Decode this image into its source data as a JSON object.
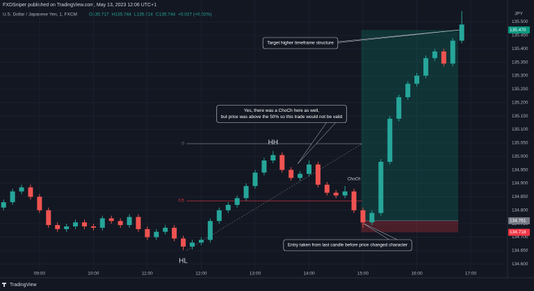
{
  "chart_data": {
    "type": "candlestick",
    "publisher": "FXDSniper published on TradingView.com, May 13, 2023 12:06 UTC+1",
    "symbol": "U.S. Dollar / Japanese Yen, 1, FXCM",
    "ohlc": [
      "O135.717",
      "H135.744",
      "L135.714",
      "C135.744",
      "+0.027 (+0.02%)"
    ],
    "currency": "JPY",
    "brand": "TradingView",
    "up_color": "#26a69a",
    "down_color": "#ef5350",
    "xlim": [
      "08:16",
      "17:41"
    ],
    "xticks": [
      "09:00",
      "10:00",
      "11:00",
      "12:00",
      "13:00",
      "14:00",
      "15:00",
      "16:00",
      "17:00"
    ],
    "ylim": [
      134.58,
      135.545
    ],
    "yticks": [
      {
        "value": 134.6,
        "label": "134.600"
      },
      {
        "value": 134.65,
        "label": "134.650"
      },
      {
        "value": 134.7,
        "label": "134.700"
      },
      {
        "value": 134.75,
        "label": "134.750"
      },
      {
        "value": 134.8,
        "label": "134.800"
      },
      {
        "value": 134.85,
        "label": "134.850"
      },
      {
        "value": 134.9,
        "label": "134.900"
      },
      {
        "value": 134.95,
        "label": "134.950"
      },
      {
        "value": 135.0,
        "label": "135.000"
      },
      {
        "value": 135.05,
        "label": "135.050"
      },
      {
        "value": 135.1,
        "label": "135.100"
      },
      {
        "value": 135.15,
        "label": "135.150"
      },
      {
        "value": 135.2,
        "label": "135.200"
      },
      {
        "value": 135.25,
        "label": "135.250"
      },
      {
        "value": 135.3,
        "label": "135.300"
      },
      {
        "value": 135.35,
        "label": "135.350"
      },
      {
        "value": 135.4,
        "label": "135.400"
      },
      {
        "value": 135.45,
        "label": "135.450"
      },
      {
        "value": 135.5,
        "label": "135.500"
      }
    ],
    "grid": true,
    "candles": {
      "x": [
        "08:20",
        "08:30",
        "08:40",
        "08:50",
        "09:00",
        "09:10",
        "09:20",
        "09:30",
        "09:40",
        "09:50",
        "10:00",
        "10:10",
        "10:20",
        "10:30",
        "10:40",
        "10:50",
        "11:00",
        "11:10",
        "11:20",
        "11:30",
        "11:40",
        "11:50",
        "12:00",
        "12:10",
        "12:20",
        "12:30",
        "12:40",
        "12:50",
        "13:00",
        "13:10",
        "13:20",
        "13:30",
        "13:40",
        "13:50",
        "14:00",
        "14:10",
        "14:20",
        "14:30",
        "14:40",
        "14:50",
        "15:00",
        "15:10",
        "15:20",
        "15:30",
        "15:40",
        "15:50",
        "16:00",
        "16:10",
        "16:20",
        "16:30",
        "16:40",
        "16:50"
      ],
      "open": [
        134.81,
        134.83,
        134.87,
        134.885,
        134.85,
        134.8,
        134.745,
        134.73,
        134.74,
        134.755,
        134.74,
        134.735,
        134.77,
        134.76,
        134.745,
        134.775,
        134.73,
        134.7,
        134.72,
        134.735,
        134.695,
        134.665,
        134.68,
        134.69,
        134.76,
        134.8,
        134.82,
        134.845,
        134.89,
        134.94,
        134.985,
        135.005,
        134.95,
        134.92,
        134.935,
        134.97,
        134.895,
        134.865,
        134.855,
        134.87,
        134.8,
        134.755,
        134.79,
        134.98,
        135.14,
        135.22,
        135.27,
        135.3,
        135.365,
        135.39,
        135.345,
        135.43
      ],
      "high": [
        134.84,
        134.88,
        134.895,
        134.895,
        134.86,
        134.81,
        134.755,
        134.75,
        134.765,
        134.765,
        134.75,
        134.78,
        134.78,
        134.77,
        134.785,
        134.785,
        134.74,
        134.73,
        134.745,
        134.745,
        134.705,
        134.69,
        134.7,
        134.77,
        134.81,
        134.83,
        134.855,
        134.9,
        134.95,
        134.995,
        135.02,
        135.015,
        134.96,
        134.945,
        134.985,
        134.98,
        134.905,
        134.875,
        134.89,
        134.88,
        134.81,
        134.8,
        134.99,
        135.15,
        135.23,
        135.28,
        135.31,
        135.375,
        135.4,
        135.4,
        135.44,
        135.54
      ],
      "low": [
        134.8,
        134.82,
        134.86,
        134.84,
        134.79,
        134.735,
        134.72,
        134.72,
        134.73,
        134.73,
        134.725,
        134.725,
        134.75,
        134.735,
        134.735,
        134.72,
        134.69,
        134.69,
        134.71,
        134.685,
        134.652,
        134.655,
        134.67,
        134.68,
        134.75,
        134.79,
        134.81,
        134.835,
        134.88,
        134.93,
        134.975,
        134.94,
        134.91,
        134.91,
        134.925,
        134.885,
        134.855,
        134.845,
        134.845,
        134.79,
        134.735,
        134.745,
        134.78,
        134.97,
        135.13,
        135.21,
        135.26,
        135.29,
        135.355,
        135.335,
        135.335,
        135.42
      ],
      "close": [
        134.83,
        134.87,
        134.885,
        134.85,
        134.8,
        134.745,
        134.73,
        134.74,
        134.755,
        134.74,
        134.735,
        134.77,
        134.76,
        134.745,
        134.775,
        134.73,
        134.7,
        134.72,
        134.735,
        134.695,
        134.665,
        134.68,
        134.69,
        134.76,
        134.8,
        134.82,
        134.845,
        134.89,
        134.94,
        134.985,
        135.005,
        134.95,
        134.92,
        134.935,
        134.97,
        134.895,
        134.865,
        134.855,
        134.87,
        134.8,
        134.755,
        134.79,
        134.98,
        135.14,
        135.22,
        135.27,
        135.3,
        135.365,
        135.39,
        135.345,
        135.43,
        135.49
      ]
    },
    "price_labels": [
      {
        "value": 135.47,
        "label": "135.470",
        "color": "#089981"
      },
      {
        "value": 134.761,
        "label": "134.761",
        "color": "#787b86"
      },
      {
        "value": 134.718,
        "label": "134.718",
        "color": "#f23645"
      }
    ],
    "position": {
      "start": "14:58",
      "end": "16:46"
    },
    "fib": {
      "start": "11:44",
      "end": "14:59",
      "levels": [
        {
          "value": 135.047,
          "label": "0",
          "color": "#787b86"
        },
        {
          "value": 134.835,
          "label": "0.5",
          "color": "#f23645"
        }
      ]
    },
    "markers": [
      {
        "text": "HH",
        "at": "13:20",
        "side": "high"
      },
      {
        "text": "HL",
        "at": "11:40",
        "side": "low"
      },
      {
        "text": "ChoCh",
        "at": "14:50",
        "side": "high"
      }
    ],
    "callouts": [
      {
        "lines": [
          "Target higher timeframe structure"
        ]
      },
      {
        "lines": [
          "Yes, there was a ChoCh here as well,",
          "but price was above the 50% so this trade would not be valid"
        ]
      },
      {
        "lines": [
          "Entry taken from last candle before price changed character"
        ]
      }
    ]
  }
}
